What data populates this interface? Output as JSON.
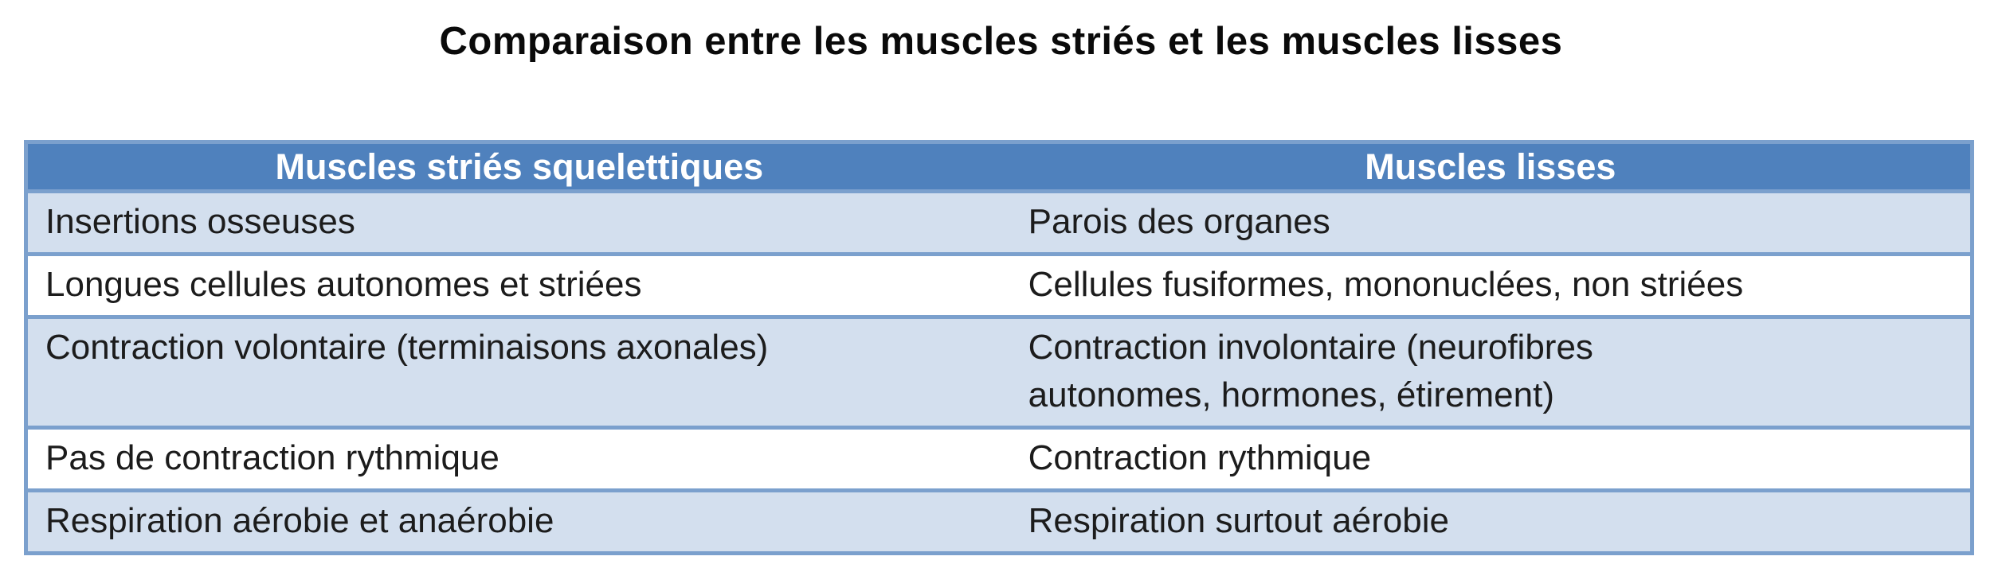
{
  "title": "Comparaison entre les muscles striés et les muscles lisses",
  "table": {
    "columns": [
      "Muscles striés squelettiques",
      "Muscles lisses"
    ],
    "rows": [
      [
        "Insertions osseuses",
        "Parois des organes"
      ],
      [
        "Longues cellules autonomes et striées",
        "Cellules fusiformes, mononuclées, non striées"
      ],
      [
        "Contraction volontaire (terminaisons axonales)",
        "Contraction involontaire (neurofibres\nautonomes, hormones, étirement)"
      ],
      [
        "Pas de contraction rythmique",
        "Contraction rythmique"
      ],
      [
        "Respiration aérobie et anaérobie",
        "Respiration surtout aérobie"
      ]
    ],
    "colors": {
      "header_bg": "#4f81bd",
      "header_text": "#ffffff",
      "band_bg": "#d3dfee",
      "row_bg": "#ffffff",
      "border": "#7ba0cd",
      "body_text": "#1c1c1c"
    }
  }
}
